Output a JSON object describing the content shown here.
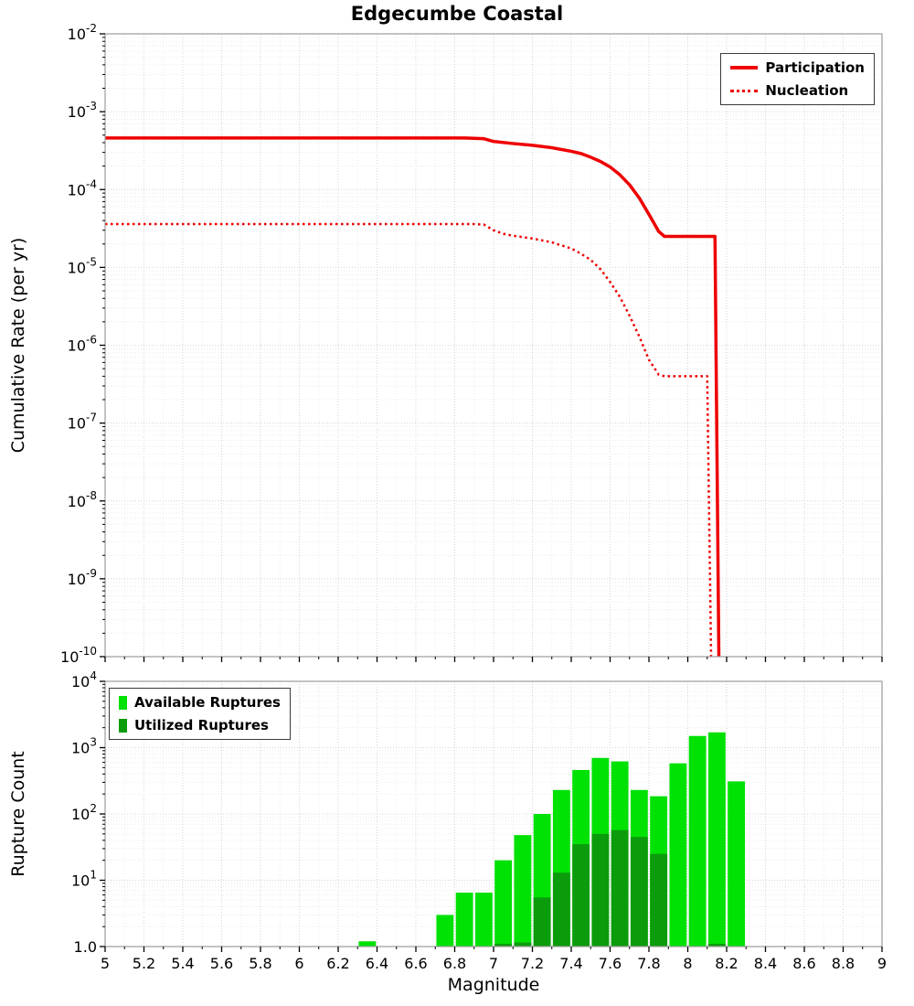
{
  "title": "Edgecumbe Coastal",
  "colors": {
    "line": "#ee0000",
    "available": "#00e104",
    "utilized": "#0b9c0b",
    "grid_major": "#d4d4d4",
    "grid_minor": "#ececec",
    "frame": "#9b9b9b",
    "tick": "#000000"
  },
  "chart_data": [
    {
      "type": "line",
      "title": "Edgecumbe Coastal",
      "ylabel": "Cumulative Rate (per yr)",
      "yscale": "log",
      "xlim": [
        5,
        9
      ],
      "ylim_exp": [
        -10,
        -2
      ],
      "x_tick_step": 0.2,
      "grid": true,
      "legend_position": "top-right",
      "legend": [
        "Participation",
        "Nucleation"
      ],
      "series": [
        {
          "name": "Participation",
          "style": "solid",
          "width": 3.5,
          "points": [
            [
              5.0,
              0.00046
            ],
            [
              6.85,
              0.00046
            ],
            [
              6.95,
              0.00045
            ],
            [
              7.0,
              0.000415
            ],
            [
              7.1,
              0.00039
            ],
            [
              7.2,
              0.00037
            ],
            [
              7.3,
              0.000345
            ],
            [
              7.4,
              0.00031
            ],
            [
              7.45,
              0.00029
            ],
            [
              7.5,
              0.00026
            ],
            [
              7.55,
              0.00023
            ],
            [
              7.6,
              0.000195
            ],
            [
              7.65,
              0.000155
            ],
            [
              7.7,
              0.000115
            ],
            [
              7.75,
              7.8e-05
            ],
            [
              7.8,
              4.8e-05
            ],
            [
              7.85,
              2.9e-05
            ],
            [
              7.88,
              2.5e-05
            ],
            [
              8.14,
              2.5e-05
            ],
            [
              8.16,
              1e-10
            ]
          ]
        },
        {
          "name": "Nucleation",
          "style": "dotted",
          "width": 2.5,
          "points": [
            [
              5.0,
              3.6e-05
            ],
            [
              6.9,
              3.6e-05
            ],
            [
              6.95,
              3.55e-05
            ],
            [
              7.0,
              3e-05
            ],
            [
              7.05,
              2.7e-05
            ],
            [
              7.1,
              2.55e-05
            ],
            [
              7.2,
              2.35e-05
            ],
            [
              7.3,
              2.1e-05
            ],
            [
              7.4,
              1.75e-05
            ],
            [
              7.45,
              1.5e-05
            ],
            [
              7.5,
              1.25e-05
            ],
            [
              7.55,
              9.5e-06
            ],
            [
              7.6,
              6.5e-06
            ],
            [
              7.65,
              4.2e-06
            ],
            [
              7.7,
              2.4e-06
            ],
            [
              7.75,
              1.3e-06
            ],
            [
              7.8,
              6.5e-07
            ],
            [
              7.85,
              4.2e-07
            ],
            [
              7.88,
              4e-07
            ],
            [
              8.1,
              4e-07
            ],
            [
              8.12,
              1e-10
            ]
          ]
        }
      ]
    },
    {
      "type": "bar",
      "ylabel": "Rupture Count",
      "xlabel": "Magnitude",
      "yscale": "log",
      "xlim": [
        5,
        9
      ],
      "ylim_exp": [
        0,
        4
      ],
      "x_tick_step": 0.2,
      "bin_width": 0.1,
      "grid": true,
      "legend_position": "top-left",
      "legend": [
        "Available Ruptures",
        "Utilized Ruptures"
      ],
      "bottom_tick_label": "1.0",
      "series": [
        {
          "name": "Available Ruptures",
          "role": "available",
          "bins": [
            [
              6.3,
              1.2
            ],
            [
              6.7,
              3.0
            ],
            [
              6.8,
              6.5
            ],
            [
              6.9,
              6.5
            ],
            [
              7.0,
              20
            ],
            [
              7.1,
              48
            ],
            [
              7.2,
              100
            ],
            [
              7.3,
              230
            ],
            [
              7.4,
              460
            ],
            [
              7.5,
              700
            ],
            [
              7.6,
              620
            ],
            [
              7.7,
              230
            ],
            [
              7.8,
              185
            ],
            [
              7.9,
              580
            ],
            [
              8.0,
              1500
            ],
            [
              8.1,
              1700
            ],
            [
              8.2,
              310
            ]
          ]
        },
        {
          "name": "Utilized Ruptures",
          "role": "utilized",
          "bins": [
            [
              7.0,
              1.1
            ],
            [
              7.1,
              1.15
            ],
            [
              7.2,
              5.5
            ],
            [
              7.3,
              13
            ],
            [
              7.4,
              35
            ],
            [
              7.5,
              50
            ],
            [
              7.6,
              57
            ],
            [
              7.7,
              45
            ],
            [
              7.8,
              25
            ],
            [
              8.1,
              1.1
            ]
          ]
        }
      ]
    }
  ]
}
